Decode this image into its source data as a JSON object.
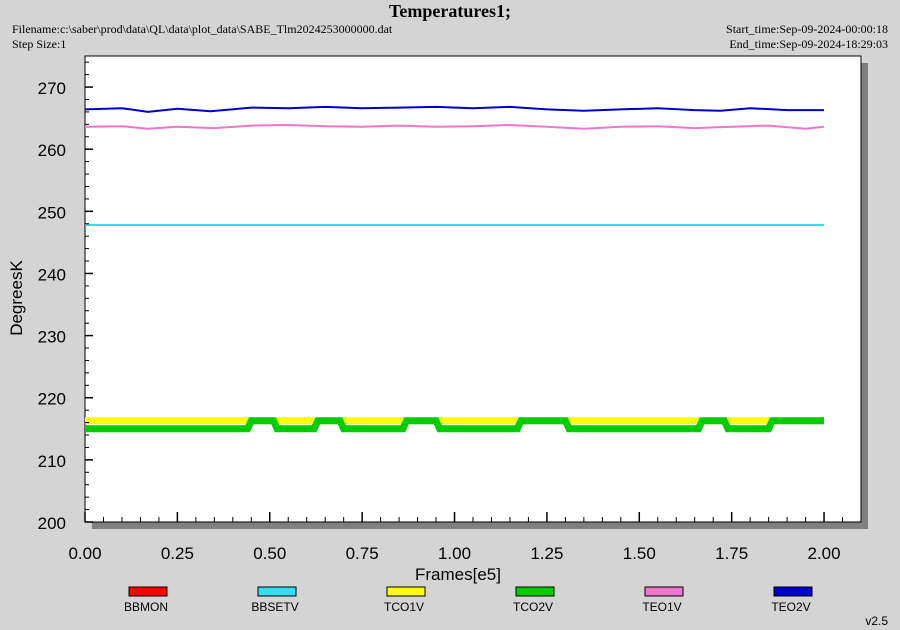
{
  "header": {
    "title": "Temperatures1;",
    "filename": "Filename:c:\\saber\\prod\\data\\QL\\data\\plot_data\\SABE_Tlm2024253000000.dat",
    "step_size": "Step Size:1",
    "start_time": "Start_time:Sep-09-2024-00:00:18",
    "end_time": "End_time:Sep-09-2024-18:29:03"
  },
  "version": "v2.5",
  "chart_data": {
    "type": "line",
    "title": "Temperatures1;",
    "xlabel": "Frames[e5]",
    "ylabel": "DegreesK",
    "xlim": [
      0,
      2.1
    ],
    "ylim": [
      200,
      275
    ],
    "x_ticks": [
      "0.00",
      "0.25",
      "0.50",
      "0.75",
      "1.00",
      "1.25",
      "1.50",
      "1.75",
      "2.00"
    ],
    "y_ticks": [
      "200",
      "210",
      "220",
      "230",
      "240",
      "250",
      "260",
      "270"
    ],
    "grid": false,
    "legend_position": "bottom",
    "series": [
      {
        "name": "BBMON",
        "color": "#ff0000",
        "x": [],
        "y": []
      },
      {
        "name": "BBSETV",
        "color": "#33ddee",
        "x": [
          0,
          0.25,
          0.5,
          0.75,
          1.0,
          1.25,
          1.5,
          1.75,
          2.0
        ],
        "y": [
          247.8,
          247.8,
          247.8,
          247.8,
          247.8,
          247.8,
          247.8,
          247.8,
          247.8
        ]
      },
      {
        "name": "TCO1V",
        "color": "#ffff00",
        "x": [
          0,
          0.25,
          0.5,
          0.75,
          1.0,
          1.25,
          1.5,
          1.75,
          2.0
        ],
        "y": [
          216.3,
          216.3,
          216.3,
          216.3,
          216.3,
          216.3,
          216.3,
          216.3,
          216.3
        ]
      },
      {
        "name": "TCO2V",
        "color": "#00cc00",
        "x": [
          0,
          0.44,
          0.45,
          0.51,
          0.52,
          0.62,
          0.63,
          0.69,
          0.7,
          0.86,
          0.87,
          0.95,
          0.96,
          1.17,
          1.18,
          1.3,
          1.31,
          1.66,
          1.67,
          1.73,
          1.74,
          1.85,
          1.86,
          2.0
        ],
        "y": [
          215.0,
          215.0,
          216.3,
          216.3,
          215.0,
          215.0,
          216.3,
          216.3,
          215.0,
          215.0,
          216.3,
          216.3,
          215.0,
          215.0,
          216.3,
          216.3,
          215.0,
          215.0,
          216.3,
          216.3,
          215.0,
          215.0,
          216.3,
          216.3
        ]
      },
      {
        "name": "TEO1V",
        "color": "#ee77cc",
        "x": [
          0,
          0.1,
          0.17,
          0.25,
          0.35,
          0.45,
          0.55,
          0.65,
          0.75,
          0.85,
          0.95,
          1.05,
          1.15,
          1.25,
          1.35,
          1.45,
          1.55,
          1.65,
          1.75,
          1.85,
          1.95,
          2.0
        ],
        "y": [
          263.6,
          263.7,
          263.3,
          263.6,
          263.4,
          263.8,
          263.9,
          263.7,
          263.6,
          263.8,
          263.6,
          263.7,
          263.9,
          263.6,
          263.3,
          263.6,
          263.7,
          263.4,
          263.6,
          263.8,
          263.3,
          263.6
        ]
      },
      {
        "name": "TEO2V",
        "color": "#0000cc",
        "x": [
          0,
          0.1,
          0.17,
          0.25,
          0.34,
          0.45,
          0.55,
          0.65,
          0.75,
          0.85,
          0.95,
          1.05,
          1.15,
          1.25,
          1.35,
          1.45,
          1.55,
          1.65,
          1.72,
          1.8,
          1.9,
          2.0
        ],
        "y": [
          266.4,
          266.6,
          266.0,
          266.5,
          266.1,
          266.7,
          266.6,
          266.8,
          266.6,
          266.7,
          266.8,
          266.6,
          266.8,
          266.4,
          266.2,
          266.4,
          266.6,
          266.3,
          266.2,
          266.6,
          266.3,
          266.3
        ]
      }
    ]
  }
}
